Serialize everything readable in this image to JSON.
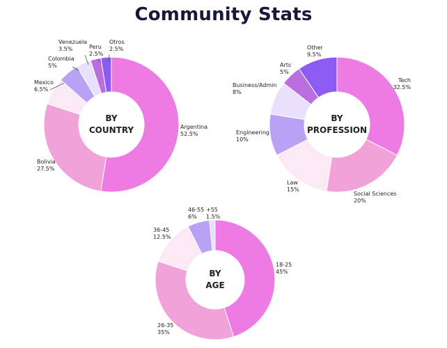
{
  "title": "Community Stats",
  "colors": [
    "#ee7ae3",
    "#f0a2d9",
    "#fbe9f6",
    "#b9a1f4",
    "#e9e1fb",
    "#bb6ede",
    "#8c5cf2"
  ],
  "chart_data": [
    {
      "type": "pie",
      "id": "country",
      "center_label": [
        "BY",
        "COUNTRY"
      ],
      "slices": [
        {
          "label": "Argentina",
          "value": 52.5,
          "text": "52.5%",
          "color": "#ee7ae3"
        },
        {
          "label": "Bolivia",
          "value": 27.5,
          "text": "27.5%",
          "color": "#f0a2d9"
        },
        {
          "label": "Mexico",
          "value": 6.5,
          "text": "6.5%",
          "color": "#fbe9f6"
        },
        {
          "label": "Colombia",
          "value": 5,
          "text": "5%",
          "color": "#b9a1f4"
        },
        {
          "label": "Venezuela",
          "value": 3.5,
          "text": "3.5%",
          "color": "#e9e1fb"
        },
        {
          "label": "Peru",
          "value": 2.5,
          "text": "2.5%",
          "color": "#bb6ede"
        },
        {
          "label": "Otros",
          "value": 2.5,
          "text": "2.5%",
          "color": "#8c5cf2"
        }
      ]
    },
    {
      "type": "pie",
      "id": "profession",
      "center_label": [
        "BY",
        "PROFESSION"
      ],
      "slices": [
        {
          "label": "Tech",
          "value": 32.5,
          "text": "32.5%",
          "color": "#ee7ae3"
        },
        {
          "label": "Social Sciences",
          "value": 20,
          "text": "20%",
          "color": "#f0a2d9"
        },
        {
          "label": "Law",
          "value": 15,
          "text": "15%",
          "color": "#fbe9f6"
        },
        {
          "label": "Engineering",
          "value": 10,
          "text": "10%",
          "color": "#b9a1f4"
        },
        {
          "label": "Business/Admin",
          "value": 8,
          "text": "8%",
          "color": "#e9e1fb"
        },
        {
          "label": "Arts",
          "value": 5,
          "text": "5%",
          "color": "#bb6ede"
        },
        {
          "label": "Other",
          "value": 9.5,
          "text": "9.5%",
          "color": "#8c5cf2"
        }
      ]
    },
    {
      "type": "pie",
      "id": "age",
      "center_label": [
        "BY",
        "AGE"
      ],
      "slices": [
        {
          "label": "18-25",
          "value": 45,
          "text": "45%",
          "color": "#ee7ae3"
        },
        {
          "label": "26-35",
          "value": 35,
          "text": "35%",
          "color": "#f0a2d9"
        },
        {
          "label": "36-45",
          "value": 12.5,
          "text": "12.5%",
          "color": "#fbe9f6"
        },
        {
          "label": "46-55",
          "value": 6,
          "text": "6%",
          "color": "#b9a1f4"
        },
        {
          "label": "+55",
          "value": 1.5,
          "text": "1.5%",
          "color": "#e9e1fb"
        }
      ]
    }
  ]
}
